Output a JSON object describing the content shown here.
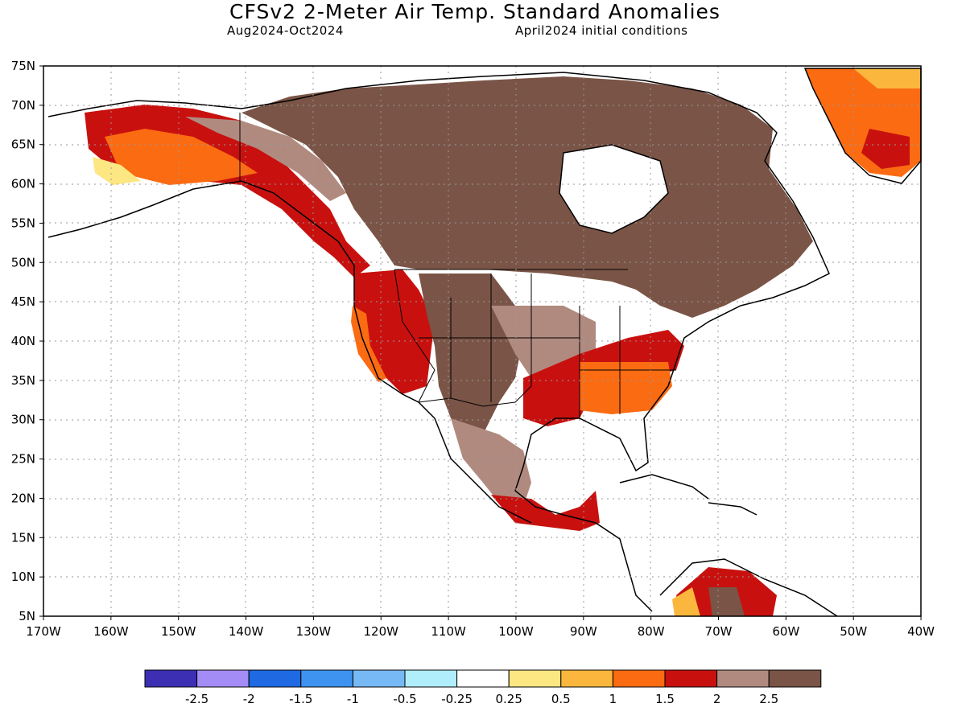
{
  "header": {
    "title": "CFSv2 2-Meter Air Temp. Standard Anomalies",
    "period": "Aug2024-Oct2024",
    "initial": "April2024 initial conditions"
  },
  "map": {
    "lat_labels": [
      "75N",
      "70N",
      "65N",
      "60N",
      "55N",
      "50N",
      "45N",
      "40N",
      "35N",
      "30N",
      "25N",
      "20N",
      "15N",
      "10N",
      "5N"
    ],
    "lon_labels": [
      "170W",
      "160W",
      "150W",
      "140W",
      "130W",
      "120W",
      "110W",
      "100W",
      "90W",
      "80W",
      "70W",
      "60W",
      "50W",
      "40W"
    ]
  },
  "legend": {
    "colors": [
      "#3c2fb3",
      "#a48cf6",
      "#1f69e3",
      "#3e93f0",
      "#77b9f5",
      "#b1eefb",
      "#ffffff",
      "#fde782",
      "#fbb73d",
      "#fb6b12",
      "#c8110f",
      "#b18a7f",
      "#7a5446"
    ],
    "labels": [
      "-2.5",
      "-2",
      "-1.5",
      "-1",
      "-0.5",
      "-0.25",
      "0.25",
      "0.5",
      "1",
      "1.5",
      "2",
      "2.5"
    ]
  }
}
